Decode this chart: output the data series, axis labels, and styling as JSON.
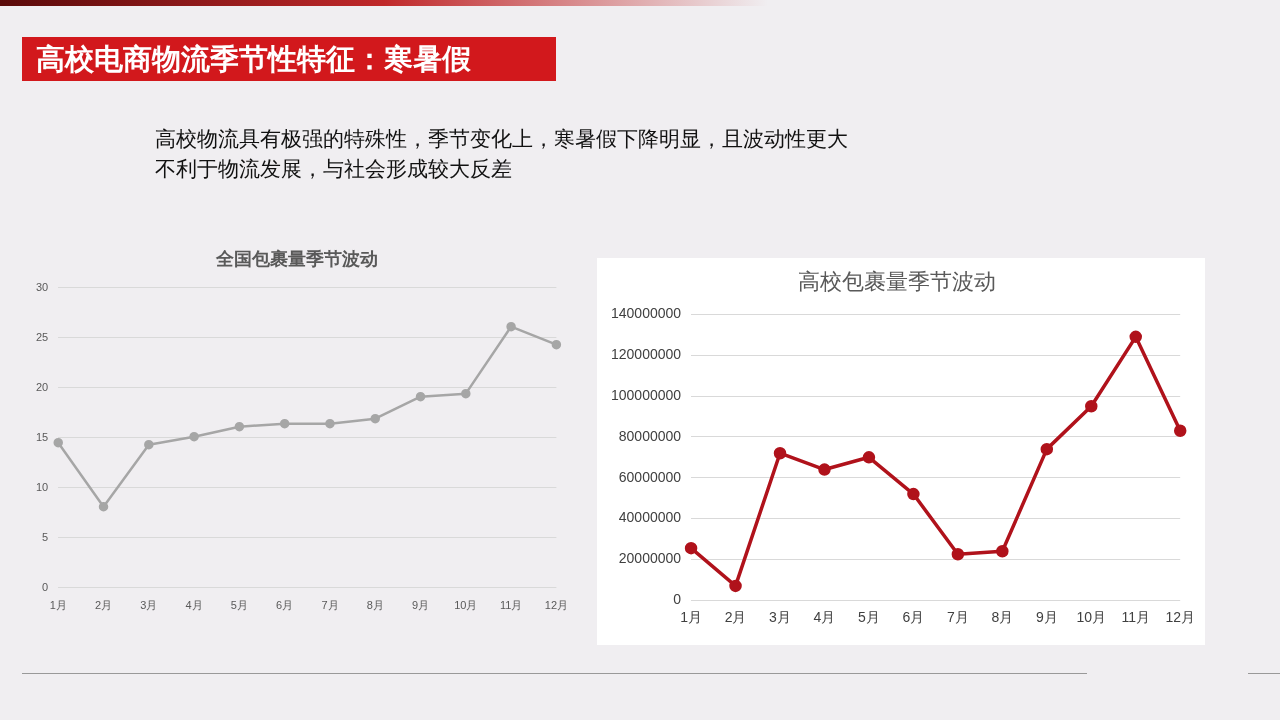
{
  "chart_data": [
    {
      "type": "other",
      "title": "高校电商物流季节性特征：寒暑假",
      "annotations": [
        "高校物流具有极强的特殊性，季节变化上，寒暑假下降明显，且波动性更大",
        "不利于物流发展，与社会形成较大反差"
      ]
    },
    {
      "type": "line",
      "title": "全国包裹量季节波动",
      "categories": [
        "1月",
        "2月",
        "3月",
        "4月",
        "5月",
        "6月",
        "7月",
        "8月",
        "9月",
        "10月",
        "11月",
        "12月"
      ],
      "series": [
        {
          "color": "#a6a6a6",
          "values": [
            14.5,
            8.1,
            14.3,
            15.1,
            16.1,
            16.4,
            16.4,
            16.9,
            19.1,
            19.4,
            26.1,
            24.3
          ]
        }
      ],
      "ylim": [
        0,
        30
      ],
      "yticks": [
        0,
        5,
        10,
        15,
        20,
        25,
        30
      ],
      "grid": "y",
      "marker": "circle"
    },
    {
      "type": "line",
      "title": "高校包裹量季节波动",
      "categories": [
        "1月",
        "2月",
        "3月",
        "4月",
        "5月",
        "6月",
        "7月",
        "8月",
        "9月",
        "10月",
        "11月",
        "12月"
      ],
      "series": [
        {
          "color": "#b0121b",
          "values": [
            25500000,
            7000000,
            72000000,
            64000000,
            70000000,
            52000000,
            22500000,
            24000000,
            74000000,
            95000000,
            129000000,
            83000000
          ]
        }
      ],
      "ylim": [
        0,
        140000000
      ],
      "yticks": [
        0,
        20000000,
        40000000,
        60000000,
        80000000,
        100000000,
        120000000,
        140000000
      ],
      "grid": "y",
      "marker": "circle"
    }
  ]
}
